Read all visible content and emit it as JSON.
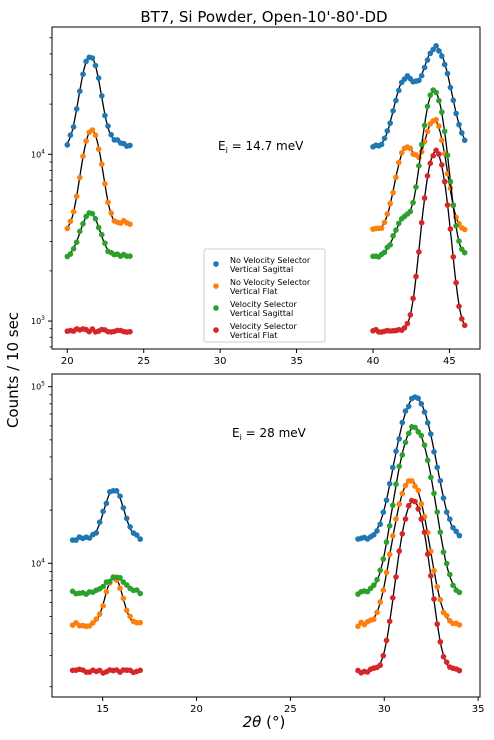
{
  "figure": {
    "title": "BT7, Si Powder, Open-10'-80'-DD",
    "ylabel": "Counts / 10 sec",
    "xlabel_italic": "2θ",
    "xlabel_rest": " (°)"
  },
  "legend": {
    "entries": [
      {
        "line1": "No Velocity Selector",
        "line2": "Vertical Sagittal",
        "color": "#1f77b4"
      },
      {
        "line1": "No Velocity Selector",
        "line2": "Vertical Flat",
        "color": "#ff7f0e"
      },
      {
        "line1": "Velocity Selector",
        "line2": "Vertical Sagittal",
        "color": "#2ca02c"
      },
      {
        "line1": "Velocity Selector",
        "line2": "Vertical Flat",
        "color": "#d62728"
      }
    ]
  },
  "chart_data": [
    {
      "type": "scatter",
      "panel": "top",
      "annotation_prefix": "E",
      "annotation_sub": "i",
      "annotation_suffix": " = 14.7 meV",
      "xlim": [
        19,
        47
      ],
      "ylim": [
        680,
        58000
      ],
      "yscale": "log",
      "xticks": [
        20,
        25,
        30,
        35,
        40,
        45
      ],
      "yticks": [
        {
          "value": 1000,
          "base": "10",
          "exp": "3"
        },
        {
          "value": 10000,
          "base": "10",
          "exp": "4"
        }
      ],
      "series": [
        {
          "color": "#1f77b4",
          "bg": 11000,
          "peaks": [
            {
              "c": 21.5,
              "a": 28000,
              "s": 0.55
            },
            {
              "c": 23.2,
              "a": 800,
              "s": 0.5
            },
            {
              "c": 42.1,
              "a": 17000,
              "s": 0.6
            },
            {
              "c": 44.1,
              "a": 33000,
              "s": 0.75
            }
          ],
          "seg1": [
            20,
            24.1
          ],
          "seg2": [
            40,
            46
          ]
        },
        {
          "color": "#ff7f0e",
          "bg": 3500,
          "peaks": [
            {
              "c": 21.6,
              "a": 10500,
              "s": 0.55
            },
            {
              "c": 23.6,
              "a": 400,
              "s": 0.5
            },
            {
              "c": 42.2,
              "a": 7500,
              "s": 0.6
            },
            {
              "c": 44.0,
              "a": 12500,
              "s": 0.6
            }
          ],
          "seg1": [
            20,
            24.1
          ],
          "seg2": [
            40,
            46
          ]
        },
        {
          "color": "#2ca02c",
          "bg": 2450,
          "peaks": [
            {
              "c": 21.5,
              "a": 2000,
              "s": 0.55
            },
            {
              "c": 42.1,
              "a": 1700,
              "s": 0.6
            },
            {
              "c": 44.0,
              "a": 21500,
              "s": 0.6
            }
          ],
          "seg1": [
            20,
            24.1
          ],
          "seg2": [
            40,
            46
          ]
        },
        {
          "color": "#d62728",
          "bg": 880,
          "peaks": [
            {
              "c": 44.1,
              "a": 9500,
              "s": 0.6
            }
          ],
          "seg1": [
            20,
            24.1
          ],
          "seg2": [
            40,
            46
          ]
        }
      ]
    },
    {
      "type": "scatter",
      "panel": "bottom",
      "annotation_prefix": "E",
      "annotation_sub": "i",
      "annotation_suffix": " = 28 meV",
      "xlim": [
        12.3,
        35.1
      ],
      "ylim": [
        1750,
        118000
      ],
      "yscale": "log",
      "xticks": [
        15,
        20,
        25,
        30,
        35
      ],
      "yticks": [
        {
          "value": 10000,
          "base": "10",
          "exp": "4"
        },
        {
          "value": 100000,
          "base": "10",
          "exp": "5"
        }
      ],
      "series": [
        {
          "color": "#1f77b4",
          "bg": 13800,
          "peaks": [
            {
              "c": 15.6,
              "a": 12500,
              "s": 0.45
            },
            {
              "c": 31.65,
              "a": 73000,
              "s": 0.75
            }
          ],
          "seg1": [
            13.4,
            17
          ],
          "seg2": [
            28.6,
            34
          ]
        },
        {
          "color": "#ff7f0e",
          "bg": 4500,
          "peaks": [
            {
              "c": 15.6,
              "a": 3900,
              "s": 0.4
            },
            {
              "c": 31.4,
              "a": 25000,
              "s": 0.68
            }
          ],
          "seg1": [
            13.4,
            17
          ],
          "seg2": [
            28.6,
            34
          ]
        },
        {
          "color": "#2ca02c",
          "bg": 6800,
          "peaks": [
            {
              "c": 15.7,
              "a": 1400,
              "s": 0.55
            },
            {
              "c": 31.6,
              "a": 52000,
              "s": 0.72
            }
          ],
          "seg1": [
            13.4,
            17
          ],
          "seg2": [
            28.6,
            34
          ]
        },
        {
          "color": "#d62728",
          "bg": 2450,
          "peaks": [
            {
              "c": 31.55,
              "a": 20000,
              "s": 0.6
            }
          ],
          "seg1": [
            13.4,
            17
          ],
          "seg2": [
            28.6,
            34
          ]
        }
      ]
    }
  ]
}
